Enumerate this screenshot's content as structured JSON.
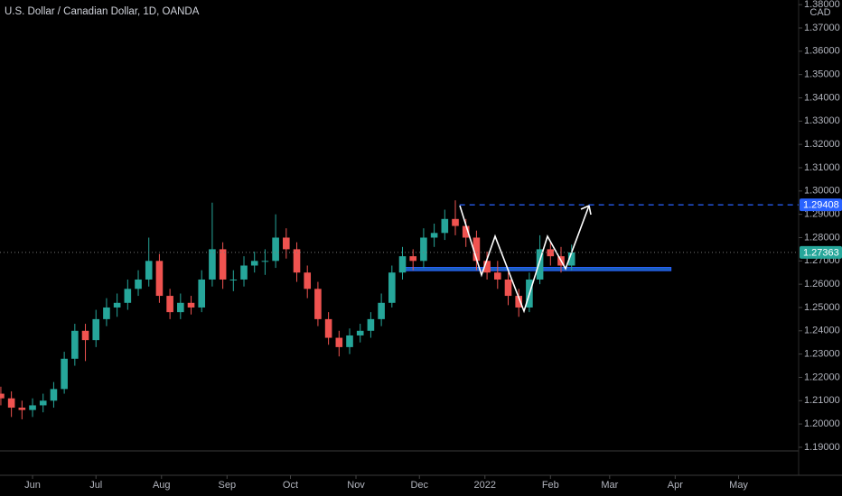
{
  "chart_data": {
    "type": "candlestick",
    "title": "U.S. Dollar / Canadian Dollar, 1D, OANDA",
    "y_unit": "CAD",
    "x": [
      -15,
      -10,
      -5,
      0,
      5,
      10,
      15,
      20,
      25,
      30,
      35,
      40,
      45,
      50,
      55,
      60,
      65,
      70,
      75,
      80,
      85,
      90,
      95,
      100,
      105,
      110,
      115,
      120,
      125,
      130,
      135,
      140,
      145,
      150,
      155,
      160,
      165,
      170,
      175,
      180,
      185,
      190,
      195,
      200,
      205,
      210,
      215,
      220,
      225,
      230,
      235,
      240,
      245,
      250,
      255
    ],
    "open": [
      1.213,
      1.211,
      1.207,
      1.206,
      1.208,
      1.21,
      1.215,
      1.228,
      1.24,
      1.236,
      1.245,
      1.25,
      1.252,
      1.258,
      1.262,
      1.27,
      1.255,
      1.248,
      1.252,
      1.25,
      1.262,
      1.275,
      1.262,
      1.262,
      1.268,
      1.27,
      1.27,
      1.28,
      1.275,
      1.265,
      1.258,
      1.245,
      1.237,
      1.233,
      1.238,
      1.24,
      1.245,
      1.252,
      1.265,
      1.272,
      1.27,
      1.28,
      1.282,
      1.288,
      1.285,
      1.28,
      1.27,
      1.265,
      1.262,
      1.255,
      1.25,
      1.262,
      1.275,
      1.272,
      1.268
    ],
    "high": [
      1.216,
      1.214,
      1.21,
      1.211,
      1.213,
      1.218,
      1.231,
      1.243,
      1.243,
      1.249,
      1.254,
      1.256,
      1.262,
      1.266,
      1.28,
      1.273,
      1.258,
      1.256,
      1.255,
      1.266,
      1.295,
      1.278,
      1.266,
      1.272,
      1.274,
      1.275,
      1.29,
      1.284,
      1.278,
      1.268,
      1.261,
      1.248,
      1.24,
      1.241,
      1.243,
      1.248,
      1.256,
      1.268,
      1.276,
      1.275,
      1.284,
      1.286,
      1.292,
      1.296,
      1.288,
      1.283,
      1.274,
      1.27,
      1.265,
      1.258,
      1.265,
      1.281,
      1.278,
      1.276,
      1.277
    ],
    "low": [
      1.208,
      1.203,
      1.202,
      1.203,
      1.205,
      1.207,
      1.213,
      1.225,
      1.227,
      1.233,
      1.242,
      1.246,
      1.249,
      1.255,
      1.259,
      1.252,
      1.245,
      1.245,
      1.247,
      1.248,
      1.259,
      1.258,
      1.257,
      1.259,
      1.265,
      1.264,
      1.267,
      1.271,
      1.261,
      1.254,
      1.242,
      1.234,
      1.229,
      1.23,
      1.235,
      1.237,
      1.242,
      1.25,
      1.262,
      1.266,
      1.267,
      1.276,
      1.279,
      1.281,
      1.276,
      1.266,
      1.262,
      1.258,
      1.251,
      1.246,
      1.248,
      1.26,
      1.268,
      1.265,
      1.266
    ],
    "close": [
      1.211,
      1.207,
      1.206,
      1.208,
      1.21,
      1.215,
      1.228,
      1.24,
      1.236,
      1.245,
      1.25,
      1.252,
      1.258,
      1.262,
      1.27,
      1.255,
      1.248,
      1.252,
      1.25,
      1.262,
      1.275,
      1.262,
      1.262,
      1.268,
      1.27,
      1.27,
      1.28,
      1.275,
      1.265,
      1.258,
      1.245,
      1.237,
      1.233,
      1.238,
      1.24,
      1.245,
      1.252,
      1.265,
      1.272,
      1.27,
      1.28,
      1.282,
      1.288,
      1.285,
      1.28,
      1.27,
      1.265,
      1.262,
      1.255,
      1.25,
      1.262,
      1.275,
      1.272,
      1.268,
      1.27363
    ],
    "up_color": "#26a69a",
    "down_color": "#ef5350",
    "xlim": [
      -15.4,
      362.4
    ],
    "xticks": [
      {
        "value": 0,
        "label": "Jun"
      },
      {
        "value": 30,
        "label": "Jul"
      },
      {
        "value": 61,
        "label": "Aug"
      },
      {
        "value": 92,
        "label": "Sep"
      },
      {
        "value": 122,
        "label": "Oct"
      },
      {
        "value": 153,
        "label": "Nov"
      },
      {
        "value": 183,
        "label": "Dec"
      },
      {
        "value": 214,
        "label": "2022"
      },
      {
        "value": 245,
        "label": "Feb"
      },
      {
        "value": 273,
        "label": "Mar"
      },
      {
        "value": 304,
        "label": "Apr"
      },
      {
        "value": 334,
        "label": "May"
      }
    ],
    "ylim": [
      1.17798,
      1.382
    ],
    "yticks": [
      {
        "value": 1.38,
        "label": "1.38000"
      },
      {
        "value": 1.37,
        "label": "1.37000"
      },
      {
        "value": 1.36,
        "label": "1.36000"
      },
      {
        "value": 1.35,
        "label": "1.35000"
      },
      {
        "value": 1.34,
        "label": "1.34000"
      },
      {
        "value": 1.33,
        "label": "1.33000"
      },
      {
        "value": 1.32,
        "label": "1.32000"
      },
      {
        "value": 1.31,
        "label": "1.31000"
      },
      {
        "value": 1.3,
        "label": "1.30000"
      },
      {
        "value": 1.29,
        "label": "1.29000"
      },
      {
        "value": 1.28,
        "label": "1.28000"
      },
      {
        "value": 1.27,
        "label": "1.27000"
      },
      {
        "value": 1.26,
        "label": "1.26000"
      },
      {
        "value": 1.25,
        "label": "1.25000"
      },
      {
        "value": 1.24,
        "label": "1.24000"
      },
      {
        "value": 1.23,
        "label": "1.23000"
      },
      {
        "value": 1.22,
        "label": "1.22000"
      },
      {
        "value": 1.21,
        "label": "1.21000"
      },
      {
        "value": 1.2,
        "label": "1.20000"
      },
      {
        "value": 1.19,
        "label": "1.19000"
      }
    ],
    "grid": false,
    "price_lines": [
      {
        "value": 1.29408,
        "label": "1.29408",
        "color": "#2962ff",
        "from": 202
      },
      {
        "value": 1.27363,
        "label": "1.27363",
        "color": "#26a69a"
      }
    ],
    "support_zone": {
      "x": [
        174,
        302
      ],
      "y": [
        1.2658,
        1.2672
      ],
      "color": "#1e6fd9"
    }
  }
}
